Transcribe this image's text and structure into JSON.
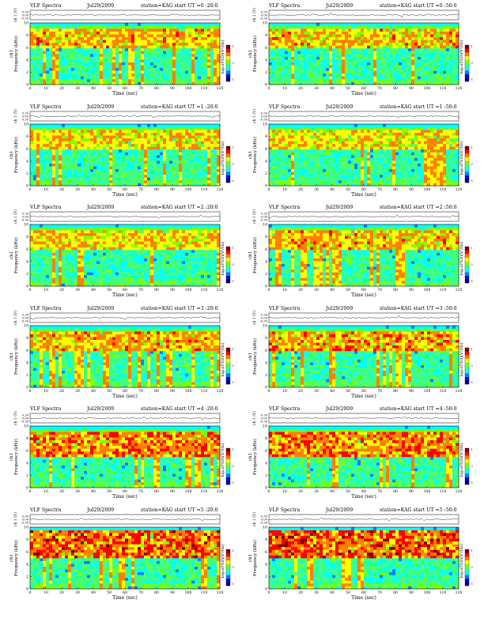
{
  "page_title": "VLF Spectra",
  "layout": {
    "columns": 2,
    "rows": 6
  },
  "common": {
    "date": "Jul29/2009",
    "station": "station=KAG",
    "start_prefix": "start  UT  =",
    "ch_label": "ch 1 (V)",
    "ch_name": "ch1",
    "ylabel": "Frequency  (kHz)",
    "xlabel": "Time  (sec)",
    "colorbar_label": "log₁₀(PSD)(V²/Hz)",
    "top_ticks": [
      "0.30",
      "0.00",
      "-0.30"
    ],
    "x_ticks": [
      "0",
      "10",
      "20",
      "30",
      "40",
      "50",
      "60",
      "70",
      "80",
      "90",
      "100",
      "110",
      "120"
    ],
    "y_ticks": [
      "0",
      "2",
      "4",
      "6",
      "8",
      "10"
    ],
    "colorbar_ticks": [
      "-1",
      "-3",
      "-5"
    ],
    "colormap": [
      "#00007f",
      "#0000ff",
      "#0080ff",
      "#00ffff",
      "#40ff80",
      "#80ff00",
      "#ffff00",
      "#ff8000",
      "#ff0000",
      "#800000"
    ]
  },
  "chart_data": [
    {
      "type": "heatmap",
      "title": "VLF Spectra",
      "start_ut": "0 :20:0",
      "xlim": [
        0,
        120
      ],
      "ylim": [
        0,
        10
      ],
      "xlabel": "Time  (sec)",
      "ylabel": "Frequency  (kHz)",
      "intensity_band_khz": [
        6,
        9
      ],
      "activity": 0.55
    },
    {
      "type": "heatmap",
      "title": "VLF Spectra",
      "start_ut": "0 :50:0",
      "xlim": [
        0,
        120
      ],
      "ylim": [
        0,
        10
      ],
      "xlabel": "Time  (sec)",
      "ylabel": "Frequency  (kHz)",
      "intensity_band_khz": [
        6,
        9
      ],
      "activity": 0.55
    },
    {
      "type": "heatmap",
      "title": "VLF Spectra",
      "start_ut": "1 :20:0",
      "xlim": [
        0,
        120
      ],
      "ylim": [
        0,
        10
      ],
      "xlabel": "Time  (sec)",
      "ylabel": "Frequency  (kHz)",
      "intensity_band_khz": [
        6,
        9
      ],
      "activity": 0.45
    },
    {
      "type": "heatmap",
      "title": "VLF Spectra",
      "start_ut": "1 :50:0",
      "xlim": [
        0,
        120
      ],
      "ylim": [
        0,
        10
      ],
      "xlabel": "Time  (sec)",
      "ylabel": "Frequency  (kHz)",
      "intensity_band_khz": [
        6,
        9
      ],
      "activity": 0.45
    },
    {
      "type": "heatmap",
      "title": "VLF Spectra",
      "start_ut": "2 :20:0",
      "xlim": [
        0,
        120
      ],
      "ylim": [
        0,
        10
      ],
      "xlabel": "Time  (sec)",
      "ylabel": "Frequency  (kHz)",
      "intensity_band_khz": [
        6,
        9
      ],
      "activity": 0.5
    },
    {
      "type": "heatmap",
      "title": "VLF Spectra",
      "start_ut": "2 :50:0",
      "xlim": [
        0,
        120
      ],
      "ylim": [
        0,
        10
      ],
      "xlabel": "Time  (sec)",
      "ylabel": "Frequency  (kHz)",
      "intensity_band_khz": [
        6,
        9
      ],
      "activity": 0.55
    },
    {
      "type": "heatmap",
      "title": "VLF Spectra",
      "start_ut": "3 :20:0",
      "xlim": [
        0,
        120
      ],
      "ylim": [
        0,
        10
      ],
      "xlabel": "Time  (sec)",
      "ylabel": "Frequency  (kHz)",
      "intensity_band_khz": [
        6,
        9
      ],
      "activity": 0.6
    },
    {
      "type": "heatmap",
      "title": "VLF Spectra",
      "start_ut": "3 :50:0",
      "xlim": [
        0,
        120
      ],
      "ylim": [
        0,
        10
      ],
      "xlabel": "Time  (sec)",
      "ylabel": "Frequency  (kHz)",
      "intensity_band_khz": [
        6,
        9
      ],
      "activity": 0.65
    },
    {
      "type": "heatmap",
      "title": "VLF Spectra",
      "start_ut": "4 :20:0",
      "xlim": [
        0,
        120
      ],
      "ylim": [
        0,
        10
      ],
      "xlabel": "Time  (sec)",
      "ylabel": "Frequency  (kHz)",
      "intensity_band_khz": [
        5,
        9
      ],
      "activity": 0.8
    },
    {
      "type": "heatmap",
      "title": "VLF Spectra",
      "start_ut": "4 :50:0",
      "xlim": [
        0,
        120
      ],
      "ylim": [
        0,
        10
      ],
      "xlabel": "Time  (sec)",
      "ylabel": "Frequency  (kHz)",
      "intensity_band_khz": [
        5,
        9
      ],
      "activity": 0.8
    },
    {
      "type": "heatmap",
      "title": "VLF Spectra",
      "start_ut": "5 :20:0",
      "xlim": [
        0,
        120
      ],
      "ylim": [
        0,
        10
      ],
      "xlabel": "Time  (sec)",
      "ylabel": "Frequency  (kHz)",
      "intensity_band_khz": [
        5,
        9.5
      ],
      "activity": 0.9
    },
    {
      "type": "heatmap",
      "title": "VLF Spectra",
      "start_ut": "5 :50:0",
      "xlim": [
        0,
        120
      ],
      "ylim": [
        0,
        10
      ],
      "xlabel": "Time  (sec)",
      "ylabel": "Frequency  (kHz)",
      "intensity_band_khz": [
        5,
        9.5
      ],
      "activity": 0.9
    }
  ]
}
